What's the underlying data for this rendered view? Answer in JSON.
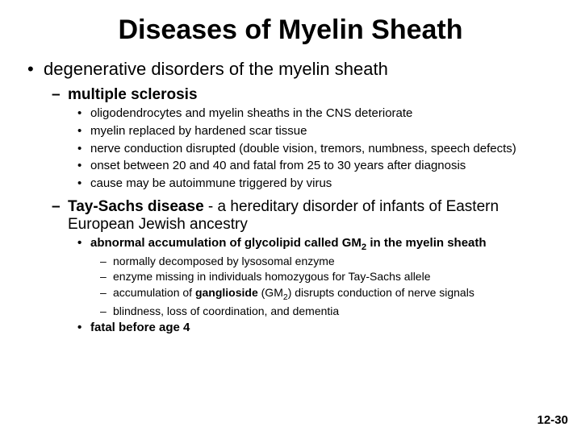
{
  "title": "Diseases of Myelin Sheath",
  "page_number": "12-30",
  "bullets": {
    "l1_0": "degenerative disorders of the myelin sheath",
    "l2_0_label": "multiple sclerosis",
    "l2_0_trail": "",
    "ms_0": "oligodendrocytes and myelin sheaths in the CNS deteriorate",
    "ms_1": "myelin replaced by hardened scar tissue",
    "ms_2": "nerve conduction disrupted (double vision, tremors, numbness, speech defects)",
    "ms_3": "onset between 20 and 40 and fatal from 25 to 30 years after diagnosis",
    "ms_4": "cause may be autoimmune triggered by virus",
    "l2_1_label": "Tay-Sachs disease",
    "l2_1_trail": " - a hereditary disorder of infants of Eastern European Jewish ancestry",
    "ts_0_pre": "abnormal accumulation of glycolipid called ",
    "ts_0_bold": "GM",
    "ts_0_sub": "2",
    "ts_0_post": " in the myelin sheath",
    "ts_sub_0": "normally decomposed by lysosomal enzyme",
    "ts_sub_1": "enzyme missing in individuals homozygous for Tay-Sachs allele",
    "ts_sub_2_pre": "accumulation of ",
    "ts_sub_2_bold": "ganglioside",
    "ts_sub_2_mid": " (GM",
    "ts_sub_2_sub": "2",
    "ts_sub_2_post": ") disrupts conduction of nerve signals",
    "ts_sub_3": "blindness, loss of coordination, and dementia",
    "ts_1": "fatal before age 4"
  },
  "styles": {
    "background": "#ffffff",
    "text_color": "#000000",
    "title_fontsize": 34,
    "l1_fontsize": 22,
    "l2_fontsize": 19,
    "l3_fontsize": 15,
    "l4_fontsize": 14,
    "font_family": "Arial"
  }
}
